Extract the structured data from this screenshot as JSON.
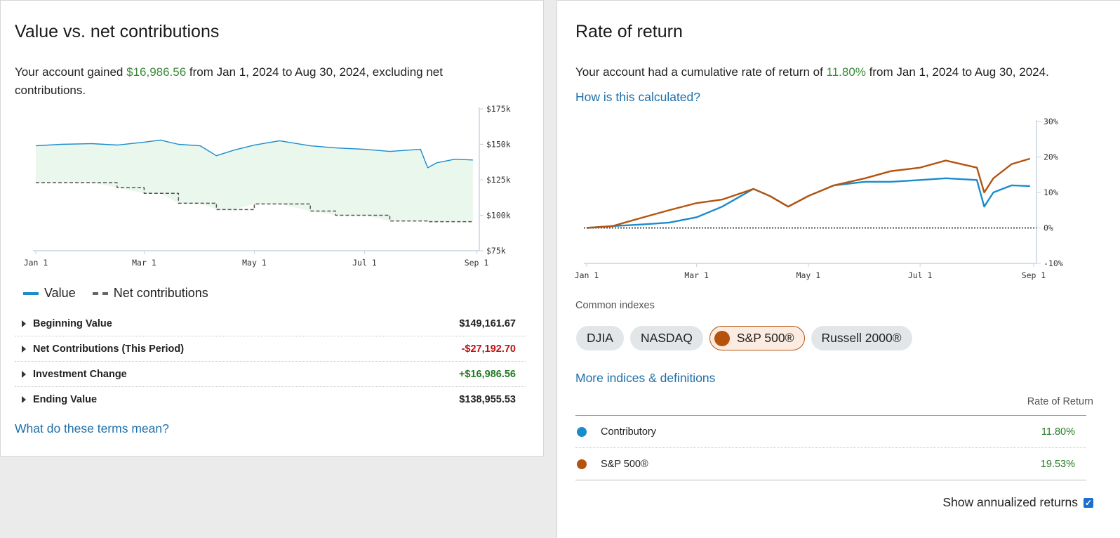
{
  "left": {
    "title": "Value vs. net contributions",
    "desc_pre": "Your account gained ",
    "desc_amount": "$16,986.56",
    "desc_post": " from Jan 1, 2024 to Aug 30, 2024, excluding net contributions.",
    "legend": {
      "value": "Value",
      "net": "Net contributions"
    },
    "summary": [
      {
        "label": "Beginning Value",
        "value": "$149,161.67"
      },
      {
        "label": "Net Contributions (This Period)",
        "value": "-$27,192.70"
      },
      {
        "label": "Investment Change",
        "value": "+$16,986.56"
      },
      {
        "label": "Ending Value",
        "value": "$138,955.53"
      }
    ],
    "terms_link": "What do these terms mean?"
  },
  "right": {
    "title": "Rate of return",
    "desc_pre": "Your account had a cumulative rate of return of ",
    "desc_rate": "11.80%",
    "desc_post": " from Jan 1, 2024 to Aug 30, 2024.",
    "calc_link": "How is this calculated?",
    "common_indexes_label": "Common indexes",
    "indexes": [
      "DJIA",
      "NASDAQ",
      "S&P 500®",
      "Russell 2000®"
    ],
    "active_index": "S&P 500®",
    "more_link": "More indices & definitions",
    "table_header": "Rate of Return",
    "rows": [
      {
        "name": "Contributory",
        "value": "11.80%",
        "color": "#1a8ccc"
      },
      {
        "name": "S&P 500®",
        "value": "19.53%",
        "color": "#b5530d"
      }
    ],
    "annualized_label": "Show annualized returns",
    "annualized_checked": true
  },
  "chart_data": [
    {
      "type": "area",
      "x_tick_labels": [
        "Jan 1",
        "Mar 1",
        "May 1",
        "Jul 1",
        "Sep 1"
      ],
      "y_tick_labels": [
        "$175k",
        "$150k",
        "$125k",
        "$100k",
        "$75k"
      ],
      "ylim": [
        75000,
        175000
      ],
      "x": [
        "2024-01-01",
        "2024-01-15",
        "2024-02-01",
        "2024-02-15",
        "2024-03-01",
        "2024-03-10",
        "2024-03-20",
        "2024-04-01",
        "2024-04-10",
        "2024-04-20",
        "2024-05-01",
        "2024-05-15",
        "2024-06-01",
        "2024-06-15",
        "2024-07-01",
        "2024-07-15",
        "2024-08-01",
        "2024-08-05",
        "2024-08-10",
        "2024-08-20",
        "2024-08-30"
      ],
      "series": [
        {
          "name": "Value",
          "color": "#1a8ccc",
          "values": [
            149000,
            150000,
            150500,
            149500,
            151500,
            153000,
            150000,
            149000,
            142000,
            146000,
            149500,
            152500,
            149000,
            147500,
            146500,
            145000,
            146500,
            133500,
            137000,
            139500,
            138955
          ]
        },
        {
          "name": "Net contributions",
          "color": "#555555",
          "style": "dashed",
          "values": [
            123000,
            123000,
            123000,
            119500,
            115500,
            115500,
            108500,
            108500,
            104000,
            104000,
            108000,
            108000,
            103000,
            100000,
            100000,
            96000,
            96000,
            95500,
            95500,
            95500,
            95500
          ]
        }
      ]
    },
    {
      "type": "line",
      "x_tick_labels": [
        "Jan 1",
        "Mar 1",
        "May 1",
        "Jul 1",
        "Sep 1"
      ],
      "y_tick_labels": [
        "30%",
        "20%",
        "10%",
        "0%",
        "-10%"
      ],
      "ylim": [
        -10,
        30
      ],
      "x": [
        "2024-01-01",
        "2024-01-15",
        "2024-02-01",
        "2024-02-15",
        "2024-03-01",
        "2024-03-15",
        "2024-04-01",
        "2024-04-10",
        "2024-04-20",
        "2024-05-01",
        "2024-05-15",
        "2024-06-01",
        "2024-06-15",
        "2024-07-01",
        "2024-07-15",
        "2024-08-01",
        "2024-08-05",
        "2024-08-10",
        "2024-08-20",
        "2024-08-30"
      ],
      "series": [
        {
          "name": "Contributory",
          "color": "#1a8ccc",
          "values": [
            0,
            0.5,
            1,
            1.5,
            3,
            6,
            11,
            9,
            6,
            9,
            12,
            13,
            13,
            13.5,
            14,
            13.5,
            6,
            10,
            12,
            11.8
          ]
        },
        {
          "name": "S&P 500®",
          "color": "#b5530d",
          "values": [
            0,
            0.5,
            3,
            5,
            7,
            8,
            11,
            9,
            6,
            9,
            12,
            14,
            16,
            17,
            19,
            17,
            10,
            14,
            18,
            19.53
          ]
        }
      ]
    }
  ]
}
